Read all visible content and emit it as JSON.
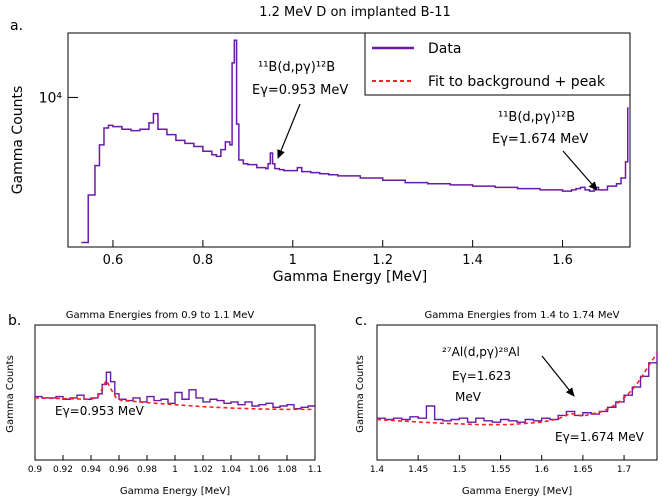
{
  "chart_data": [
    {
      "panel_label": "a.",
      "type": "line",
      "title": "1.2 MeV D on implanted B-11",
      "xlabel": "Gamma Energy [MeV]",
      "ylabel": "Gamma Counts",
      "xlim": [
        0.5,
        1.75
      ],
      "ylim": [
        2000,
        20000
      ],
      "yscale": "log",
      "x_ticks": [
        0.6,
        0.8,
        1.0,
        1.2,
        1.4,
        1.6
      ],
      "x_tick_labels": [
        "0.6",
        "0.8",
        "1",
        "1.2",
        "1.4",
        "1.6"
      ],
      "y_ticks": [
        10000
      ],
      "y_tick_labels": [
        "10⁴"
      ],
      "grid": false,
      "legend_position": "top-right",
      "series": [
        {
          "name": "Data",
          "color": "#6a1aa8",
          "style": "step",
          "x": [
            0.53,
            0.545,
            0.56,
            0.57,
            0.58,
            0.59,
            0.6,
            0.62,
            0.64,
            0.66,
            0.68,
            0.69,
            0.7,
            0.72,
            0.74,
            0.76,
            0.78,
            0.8,
            0.82,
            0.83,
            0.84,
            0.85,
            0.86,
            0.865,
            0.87,
            0.875,
            0.88,
            0.89,
            0.9,
            0.92,
            0.94,
            0.945,
            0.95,
            0.955,
            0.96,
            0.97,
            0.98,
            1.0,
            1.01,
            1.02,
            1.04,
            1.06,
            1.08,
            1.1,
            1.15,
            1.2,
            1.25,
            1.3,
            1.35,
            1.4,
            1.45,
            1.5,
            1.55,
            1.6,
            1.62,
            1.63,
            1.64,
            1.65,
            1.66,
            1.67,
            1.674,
            1.68,
            1.7,
            1.72,
            1.73,
            1.74,
            1.745
          ],
          "y": [
            2100,
            3500,
            4800,
            6000,
            7200,
            7400,
            7300,
            7100,
            7000,
            7100,
            7600,
            8400,
            7100,
            6700,
            6300,
            6100,
            5900,
            5600,
            5400,
            5300,
            5700,
            6200,
            6000,
            14500,
            18500,
            7500,
            5100,
            4900,
            4850,
            4700,
            4650,
            4900,
            5500,
            4900,
            4650,
            4600,
            4550,
            4550,
            4700,
            4500,
            4450,
            4400,
            4350,
            4300,
            4200,
            4100,
            4000,
            3950,
            3900,
            3850,
            3800,
            3750,
            3700,
            3650,
            3700,
            3750,
            3800,
            3700,
            3650,
            3700,
            3800,
            3700,
            3850,
            3950,
            4200,
            5000,
            9000
          ]
        },
        {
          "name": "Fit to background + peak",
          "color": "#ff2020",
          "style": "dashed",
          "x": [],
          "y": []
        }
      ],
      "annotations": [
        {
          "lines": [
            "¹¹B(d,pγ)¹²B",
            "Eγ=0.953 MeV"
          ],
          "target_x": 0.953
        },
        {
          "lines": [
            "¹¹B(d,pγ)¹²B",
            "Eγ=1.674 MeV"
          ],
          "target_x": 1.674
        }
      ]
    },
    {
      "panel_label": "b.",
      "type": "line",
      "title": "Gamma Energies from 0.9 to 1.1 MeV",
      "xlabel": "Gamma Energy [MeV]",
      "ylabel": "Gamma Counts",
      "xlim": [
        0.9,
        1.1
      ],
      "ylim": [
        0,
        10
      ],
      "x_ticks": [
        0.9,
        0.92,
        0.94,
        0.96,
        0.98,
        1.0,
        1.02,
        1.04,
        1.06,
        1.08,
        1.1
      ],
      "x_tick_labels": [
        "0.9",
        "0.92",
        "0.94",
        "0.96",
        "0.98",
        "1",
        "1.02",
        "1.04",
        "1.06",
        "1.08",
        "1.1"
      ],
      "grid": false,
      "series": [
        {
          "name": "Data",
          "color": "#6a1aa8",
          "style": "step",
          "x": [
            0.9,
            0.905,
            0.91,
            0.915,
            0.92,
            0.925,
            0.93,
            0.935,
            0.94,
            0.945,
            0.948,
            0.951,
            0.954,
            0.957,
            0.96,
            0.965,
            0.97,
            0.975,
            0.98,
            0.985,
            0.99,
            0.995,
            1.0,
            1.005,
            1.01,
            1.015,
            1.02,
            1.025,
            1.03,
            1.035,
            1.04,
            1.045,
            1.05,
            1.055,
            1.06,
            1.065,
            1.07,
            1.075,
            1.08,
            1.085,
            1.09,
            1.095,
            1.1
          ],
          "y": [
            4.7,
            4.6,
            4.6,
            4.7,
            4.5,
            4.6,
            4.8,
            4.5,
            4.6,
            4.9,
            5.6,
            6.5,
            5.8,
            4.9,
            4.5,
            4.4,
            4.6,
            4.3,
            4.7,
            4.4,
            4.5,
            4.2,
            5.0,
            4.5,
            5.2,
            4.6,
            4.3,
            4.5,
            4.4,
            4.2,
            4.3,
            4.1,
            4.3,
            4.0,
            4.1,
            4.2,
            3.9,
            4.0,
            4.1,
            3.8,
            3.9,
            4.0,
            4.1
          ]
        },
        {
          "name": "Fit to background + peak",
          "color": "#ff2020",
          "style": "dashed",
          "x": [
            0.9,
            0.92,
            0.94,
            0.945,
            0.948,
            0.951,
            0.954,
            0.958,
            0.962,
            0.97,
            0.98,
            1.0,
            1.02,
            1.04,
            1.06,
            1.08,
            1.1
          ],
          "y": [
            4.6,
            4.55,
            4.5,
            4.7,
            5.3,
            5.9,
            5.3,
            4.6,
            4.4,
            4.35,
            4.25,
            4.1,
            3.95,
            3.85,
            3.78,
            3.75,
            3.75
          ]
        }
      ],
      "annotations": [
        {
          "lines": [
            "Eγ=0.953 MeV"
          ],
          "target_x": null
        }
      ]
    },
    {
      "panel_label": "c.",
      "type": "line",
      "title": "Gamma Energies from 1.4 to 1.74 MeV",
      "xlabel": "Gamma Energy [MeV]",
      "ylabel": "Gamma Counts",
      "xlim": [
        1.4,
        1.74
      ],
      "ylim": [
        0,
        10
      ],
      "x_ticks": [
        1.4,
        1.45,
        1.5,
        1.55,
        1.6,
        1.65,
        1.7
      ],
      "x_tick_labels": [
        "1.4",
        "1.45",
        "1.5",
        "1.55",
        "1.6",
        "1.65",
        "1.7"
      ],
      "grid": false,
      "series": [
        {
          "name": "Data",
          "color": "#6a1aa8",
          "style": "step",
          "x": [
            1.4,
            1.41,
            1.42,
            1.43,
            1.44,
            1.45,
            1.46,
            1.47,
            1.48,
            1.49,
            1.5,
            1.51,
            1.52,
            1.53,
            1.54,
            1.55,
            1.56,
            1.57,
            1.58,
            1.59,
            1.6,
            1.61,
            1.62,
            1.63,
            1.64,
            1.65,
            1.66,
            1.67,
            1.68,
            1.69,
            1.7,
            1.71,
            1.72,
            1.73,
            1.74
          ],
          "y": [
            3.1,
            3.0,
            3.1,
            3.0,
            3.2,
            3.1,
            4.0,
            3.0,
            2.9,
            3.0,
            3.1,
            2.8,
            3.1,
            2.9,
            2.8,
            3.0,
            2.9,
            2.8,
            3.0,
            2.9,
            3.1,
            3.0,
            3.3,
            3.6,
            3.3,
            3.5,
            3.4,
            3.6,
            3.9,
            4.3,
            4.8,
            5.4,
            6.2,
            7.2,
            8.0
          ]
        },
        {
          "name": "Fit to background + peak",
          "color": "#ff2020",
          "style": "dashed",
          "x": [
            1.4,
            1.44,
            1.48,
            1.52,
            1.56,
            1.6,
            1.62,
            1.635,
            1.65,
            1.66,
            1.674,
            1.69,
            1.7,
            1.71,
            1.72,
            1.73,
            1.74
          ],
          "y": [
            3.0,
            2.85,
            2.72,
            2.63,
            2.62,
            2.8,
            3.05,
            3.45,
            3.25,
            3.4,
            3.6,
            4.1,
            4.6,
            5.2,
            6.0,
            7.0,
            7.9
          ]
        }
      ],
      "annotations": [
        {
          "lines": [
            "²⁷Al(d,pγ)²⁸Al",
            "Eγ=1.623",
            "MeV"
          ],
          "target_x": 1.637
        },
        {
          "lines": [
            "Eγ=1.674 MeV"
          ],
          "target_x": null
        }
      ]
    }
  ]
}
